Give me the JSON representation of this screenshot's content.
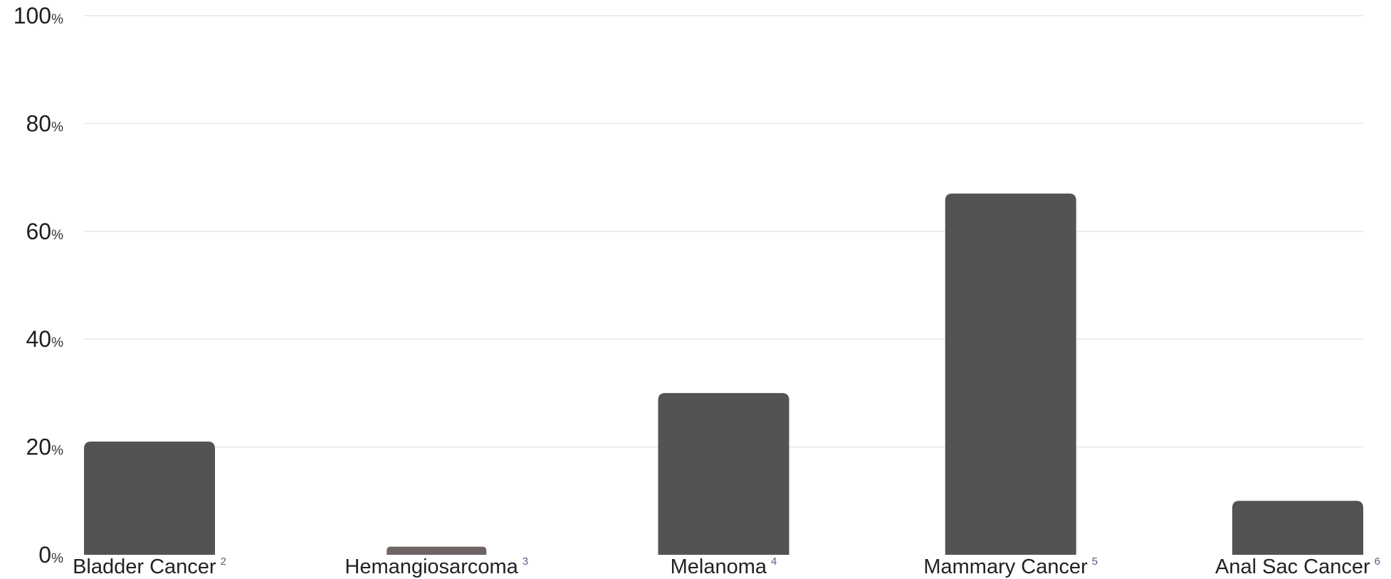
{
  "chart_data": {
    "type": "bar",
    "categories": [
      "Bladder Cancer",
      "Hemangiosarcoma",
      "Melanoma",
      "Mammary Cancer",
      "Anal Sac Cancer"
    ],
    "category_superscripts": [
      "2",
      "3",
      "4",
      "5",
      "6"
    ],
    "values": [
      21,
      1.5,
      30,
      67,
      10
    ],
    "ylim": [
      0,
      100
    ],
    "yticks": [
      0,
      20,
      40,
      60,
      80,
      100
    ],
    "ytick_labels": [
      "0",
      "20",
      "40",
      "60",
      "80",
      "100"
    ],
    "y_unit": "%",
    "grid": true,
    "title": "",
    "xlabel": "",
    "ylabel": ""
  },
  "colors": {
    "bar": "#535353",
    "bar_small": "#6e6463",
    "grid": "#e6e6e6",
    "superscript": "#5a5a8a"
  }
}
